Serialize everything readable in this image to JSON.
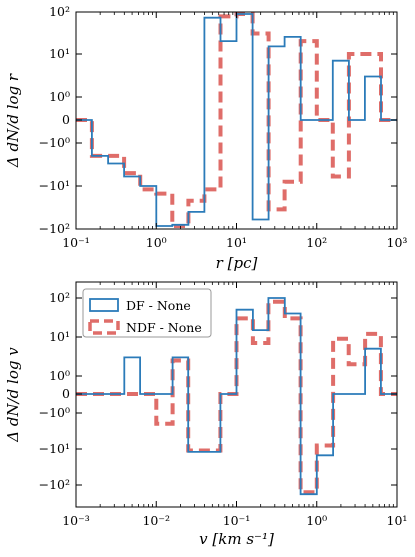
{
  "colors": {
    "df": "#2b7bb9",
    "ndf": "#d9534f"
  },
  "chart_data": [
    {
      "type": "line",
      "step": true,
      "xscale": "log",
      "yscale": "symlog",
      "xlim": [
        0.1,
        1000
      ],
      "ylim": [
        -100,
        100
      ],
      "xlabel": "r [pc]",
      "ylabel": "Δ dN/d log r",
      "xticks": [
        0.1,
        1,
        10,
        100,
        1000
      ],
      "xtick_labels": [
        "10⁻¹",
        "10⁰",
        "10¹",
        "10²",
        "10³"
      ],
      "yticks": [
        100,
        10,
        1,
        0,
        -1,
        -10,
        -100
      ],
      "ytick_labels": [
        "10²",
        "10¹",
        "10⁰",
        "0",
        "−10⁰",
        "−10¹",
        "−10²"
      ],
      "legend": false,
      "series": [
        {
          "style": "solid",
          "color_key": "df",
          "edges": [
            0.1,
            0.158,
            0.251,
            0.398,
            0.631,
            1.0,
            1.585,
            2.512,
            3.981,
            6.31,
            10.0,
            15.85,
            25.12,
            39.81,
            63.1,
            100.0,
            158.5,
            251.2,
            398.1,
            631.0,
            1000.0
          ],
          "values": [
            0,
            -2,
            -3,
            -6,
            -10,
            -85,
            -80,
            -40,
            70,
            20,
            85,
            -60,
            15,
            25,
            0,
            0,
            7,
            0,
            3,
            0
          ]
        },
        {
          "style": "dashed",
          "color_key": "ndf",
          "edges": [
            0.1,
            0.158,
            0.251,
            0.398,
            0.631,
            1.0,
            1.585,
            2.512,
            3.981,
            6.31,
            10.0,
            15.85,
            25.12,
            39.81,
            63.1,
            100.0,
            158.5,
            251.2,
            398.1,
            631.0,
            1000.0
          ],
          "values": [
            0,
            -2,
            -2,
            -5,
            -12,
            -15,
            -85,
            -22,
            -12,
            75,
            85,
            30,
            -35,
            -8,
            20,
            0,
            -6,
            10,
            10,
            0
          ]
        }
      ]
    },
    {
      "type": "line",
      "step": true,
      "xscale": "log",
      "yscale": "symlog",
      "xlim": [
        0.001,
        10
      ],
      "ylim": [
        -300,
        300
      ],
      "xlabel": "v [km s⁻¹]",
      "ylabel": "Δ dN/d log v",
      "xticks": [
        0.001,
        0.01,
        0.1,
        1,
        10
      ],
      "xtick_labels": [
        "10⁻³",
        "10⁻²",
        "10⁻¹",
        "10⁰",
        "10¹"
      ],
      "yticks": [
        100,
        10,
        1,
        0,
        -1,
        -10,
        -100
      ],
      "ytick_labels": [
        "10²",
        "10¹",
        "10⁰",
        "0",
        "−10⁰",
        "−10¹",
        "−10²"
      ],
      "legend": true,
      "legend_position": "upper-left",
      "series": [
        {
          "name": "DF - None",
          "style": "solid",
          "color_key": "df",
          "edges": [
            0.001,
            0.0016,
            0.0025,
            0.004,
            0.0063,
            0.01,
            0.016,
            0.025,
            0.04,
            0.063,
            0.1,
            0.16,
            0.25,
            0.4,
            0.63,
            1.0,
            1.6,
            2.5,
            4.0,
            6.3,
            10.0
          ],
          "values": [
            0,
            0,
            0,
            3,
            0,
            0,
            3,
            -12,
            -12,
            0,
            50,
            15,
            100,
            40,
            -180,
            -15,
            0,
            0,
            5,
            0
          ]
        },
        {
          "name": "NDF - None",
          "style": "dashed",
          "color_key": "ndf",
          "edges": [
            0.001,
            0.0016,
            0.0025,
            0.004,
            0.0063,
            0.01,
            0.016,
            0.025,
            0.04,
            0.063,
            0.1,
            0.16,
            0.25,
            0.4,
            0.63,
            1.0,
            1.6,
            2.5,
            4.0,
            6.3,
            10.0
          ],
          "values": [
            0,
            0,
            0,
            0,
            0,
            -2,
            2.5,
            -11,
            -11,
            0,
            30,
            7,
            80,
            30,
            -160,
            -8,
            9,
            2,
            12,
            0
          ]
        }
      ]
    }
  ]
}
